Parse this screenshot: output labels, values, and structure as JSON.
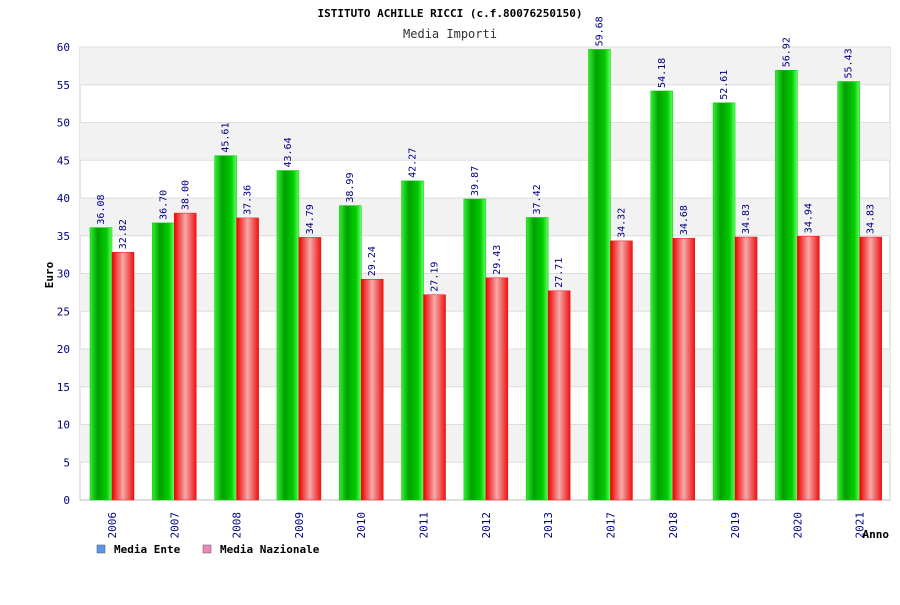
{
  "chart_data": {
    "type": "bar",
    "title": "ISTITUTO ACHILLE RICCI (c.f.80076250150)",
    "subtitle": "Media Importi",
    "xlabel": "Anno",
    "ylabel": "Euro",
    "ylim": [
      0,
      60
    ],
    "yticks": [
      0,
      5,
      10,
      15,
      20,
      25,
      30,
      35,
      40,
      45,
      50,
      55,
      60
    ],
    "grid": true,
    "legend_position": "bottom-left",
    "categories": [
      "2006",
      "2007",
      "2008",
      "2009",
      "2010",
      "2011",
      "2012",
      "2013",
      "2017",
      "2018",
      "2019",
      "2020",
      "2021"
    ],
    "series": [
      {
        "name": "Media Ente",
        "color": "#00cc00",
        "legend_color": "#5599ee",
        "values": [
          36.08,
          36.7,
          45.61,
          43.64,
          38.99,
          42.27,
          39.87,
          37.42,
          59.68,
          54.18,
          52.61,
          56.92,
          55.43
        ],
        "labels": [
          "36.08",
          "36.70",
          "45.61",
          "43.64",
          "38.99",
          "42.27",
          "39.87",
          "37.42",
          "59.68",
          "54.18",
          "52.61",
          "56.92",
          "55.43"
        ]
      },
      {
        "name": "Media Nazionale",
        "color": "#ee1111",
        "legend_color": "#ee88bb",
        "values": [
          32.82,
          38.0,
          37.36,
          34.79,
          29.24,
          27.19,
          29.43,
          27.71,
          34.32,
          34.68,
          34.83,
          34.94,
          34.83
        ],
        "labels": [
          "32.82",
          "38.00",
          "37.36",
          "34.79",
          "29.24",
          "27.19",
          "29.43",
          "27.71",
          "34.32",
          "34.68",
          "34.83",
          "34.94",
          "34.83"
        ]
      }
    ]
  }
}
